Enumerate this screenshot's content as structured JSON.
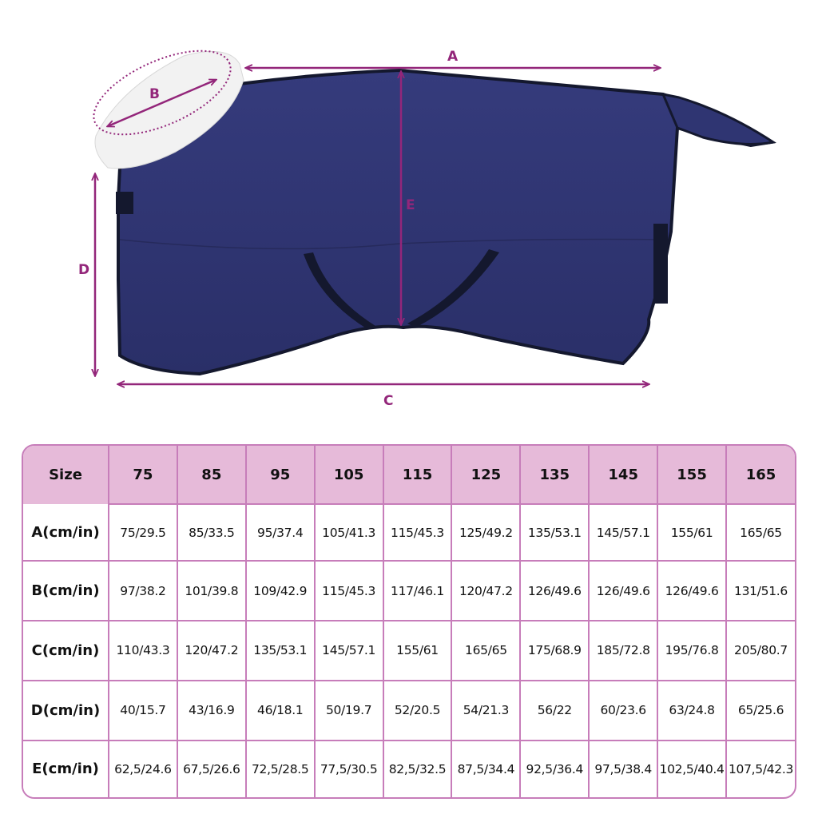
{
  "diagram": {
    "labels": {
      "A": "A",
      "B": "B",
      "C": "C",
      "D": "D",
      "E": "E"
    },
    "colors": {
      "arrow": "#93267a",
      "blanket": "#2f3572",
      "trim": "#14182e",
      "fleece": "#f2f2f2"
    }
  },
  "table": {
    "header": [
      "Size",
      "75",
      "85",
      "95",
      "105",
      "115",
      "125",
      "135",
      "145",
      "155",
      "165"
    ],
    "rows": [
      {
        "label": "A(cm/in)",
        "values": [
          "75/29.5",
          "85/33.5",
          "95/37.4",
          "105/41.3",
          "115/45.3",
          "125/49.2",
          "135/53.1",
          "145/57.1",
          "155/61",
          "165/65"
        ]
      },
      {
        "label": "B(cm/in)",
        "values": [
          "97/38.2",
          "101/39.8",
          "109/42.9",
          "115/45.3",
          "117/46.1",
          "120/47.2",
          "126/49.6",
          "126/49.6",
          "126/49.6",
          "131/51.6"
        ]
      },
      {
        "label": "C(cm/in)",
        "values": [
          "110/43.3",
          "120/47.2",
          "135/53.1",
          "145/57.1",
          "155/61",
          "165/65",
          "175/68.9",
          "185/72.8",
          "195/76.8",
          "205/80.7"
        ]
      },
      {
        "label": "D(cm/in)",
        "values": [
          "40/15.7",
          "43/16.9",
          "46/18.1",
          "50/19.7",
          "52/20.5",
          "54/21.3",
          "56/22",
          "60/23.6",
          "63/24.8",
          "65/25.6"
        ]
      },
      {
        "label": "E(cm/in)",
        "values": [
          "62,5/24.6",
          "67,5/26.6",
          "72,5/28.5",
          "77,5/30.5",
          "82,5/32.5",
          "87,5/34.4",
          "92,5/36.4",
          "97,5/38.4",
          "102,5/40.4",
          "107,5/42.3"
        ]
      }
    ],
    "colors": {
      "header_bg": "#e6bad9",
      "border": "#c77dba"
    }
  }
}
